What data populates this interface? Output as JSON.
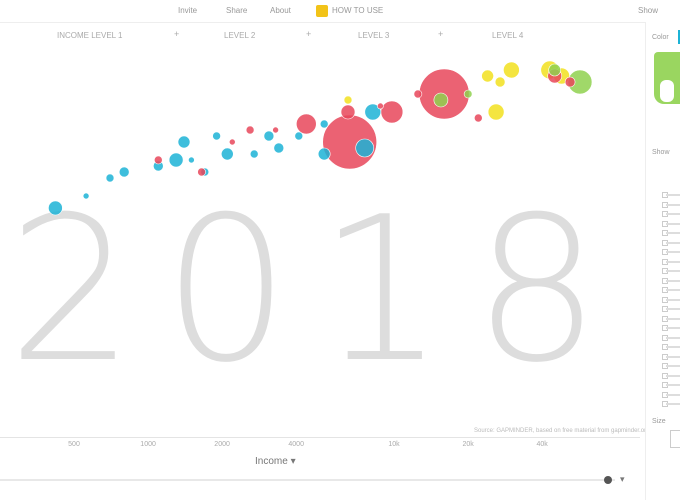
{
  "topbar": {
    "items": [
      "Invite",
      "Share",
      "About"
    ],
    "howto": "HOW TO USE",
    "right": "Show"
  },
  "axis_row": {
    "labels": [
      "INCOME LEVEL 1",
      "LEVEL 2",
      "LEVEL 3",
      "LEVEL 4"
    ],
    "plus": "+"
  },
  "sidebar": {
    "color_label": "Color",
    "show_label": "Show",
    "size_label": "Size",
    "colors": {
      "africa": "#1cb3d6",
      "asia": "#e8475a",
      "europe": "#f2e11e",
      "americas": "#8fd14f"
    }
  },
  "timeline": {
    "arrow": "▾"
  },
  "chart_data": {
    "type": "scatter",
    "year": "2018",
    "xlabel": "Income",
    "x_scale": "log",
    "x_ticks": [
      "500",
      "1000",
      "2000",
      "4000",
      "10k",
      "20k",
      "40k"
    ],
    "source": "Source: GAPMINDER, based on free material from gapminder.org",
    "points": [
      {
        "x": 420,
        "y": 58,
        "r": 7,
        "c": "africa"
      },
      {
        "x": 560,
        "y": 60,
        "r": 3,
        "c": "africa"
      },
      {
        "x": 700,
        "y": 63,
        "r": 4,
        "c": "africa"
      },
      {
        "x": 800,
        "y": 64,
        "r": 5,
        "c": "africa"
      },
      {
        "x": 1100,
        "y": 65,
        "r": 5,
        "c": "africa"
      },
      {
        "x": 1300,
        "y": 66,
        "r": 7,
        "c": "africa"
      },
      {
        "x": 1500,
        "y": 66,
        "r": 3,
        "c": "africa"
      },
      {
        "x": 1700,
        "y": 64,
        "r": 4,
        "c": "africa"
      },
      {
        "x": 2100,
        "y": 67,
        "r": 6,
        "c": "africa"
      },
      {
        "x": 2700,
        "y": 67,
        "r": 4,
        "c": "africa"
      },
      {
        "x": 3400,
        "y": 68,
        "r": 5,
        "c": "africa"
      },
      {
        "x": 5200,
        "y": 67,
        "r": 6,
        "c": "africa"
      },
      {
        "x": 8200,
        "y": 74,
        "r": 8,
        "c": "africa"
      },
      {
        "x": 7600,
        "y": 68,
        "r": 9,
        "c": "africa"
      },
      {
        "x": 1400,
        "y": 69,
        "r": 6,
        "c": "africa"
      },
      {
        "x": 1900,
        "y": 70,
        "r": 4,
        "c": "africa"
      },
      {
        "x": 3100,
        "y": 70,
        "r": 5,
        "c": "africa"
      },
      {
        "x": 4100,
        "y": 70,
        "r": 4,
        "c": "africa"
      },
      {
        "x": 5200,
        "y": 72,
        "r": 4,
        "c": "africa"
      },
      {
        "x": 1650,
        "y": 64,
        "r": 4,
        "c": "asia"
      },
      {
        "x": 1100,
        "y": 66,
        "r": 4,
        "c": "asia"
      },
      {
        "x": 2200,
        "y": 69,
        "r": 3,
        "c": "asia"
      },
      {
        "x": 2600,
        "y": 71,
        "r": 4,
        "c": "asia"
      },
      {
        "x": 3300,
        "y": 71,
        "r": 3,
        "c": "asia"
      },
      {
        "x": 4400,
        "y": 72,
        "r": 10,
        "c": "asia"
      },
      {
        "x": 6600,
        "y": 69,
        "r": 27,
        "c": "asia"
      },
      {
        "x": 6500,
        "y": 74,
        "r": 7,
        "c": "asia"
      },
      {
        "x": 9800,
        "y": 74,
        "r": 11,
        "c": "asia"
      },
      {
        "x": 16000,
        "y": 77,
        "r": 25,
        "c": "asia"
      },
      {
        "x": 22000,
        "y": 73,
        "r": 4,
        "c": "asia"
      },
      {
        "x": 45000,
        "y": 80,
        "r": 7,
        "c": "asia"
      },
      {
        "x": 52000,
        "y": 79,
        "r": 5,
        "c": "asia"
      },
      {
        "x": 12500,
        "y": 77,
        "r": 4,
        "c": "asia"
      },
      {
        "x": 8800,
        "y": 75,
        "r": 3,
        "c": "asia"
      },
      {
        "x": 30000,
        "y": 81,
        "r": 8,
        "c": "europe"
      },
      {
        "x": 24000,
        "y": 80,
        "r": 6,
        "c": "europe"
      },
      {
        "x": 27000,
        "y": 79,
        "r": 5,
        "c": "europe"
      },
      {
        "x": 43000,
        "y": 81,
        "r": 9,
        "c": "europe"
      },
      {
        "x": 48000,
        "y": 80,
        "r": 8,
        "c": "europe"
      },
      {
        "x": 26000,
        "y": 74,
        "r": 8,
        "c": "europe"
      },
      {
        "x": 6500,
        "y": 76,
        "r": 4,
        "c": "europe"
      },
      {
        "x": 15500,
        "y": 76,
        "r": 7,
        "c": "americas"
      },
      {
        "x": 20000,
        "y": 77,
        "r": 4,
        "c": "americas"
      },
      {
        "x": 57000,
        "y": 79,
        "r": 12,
        "c": "americas"
      },
      {
        "x": 45000,
        "y": 81,
        "r": 6,
        "c": "americas"
      }
    ]
  }
}
